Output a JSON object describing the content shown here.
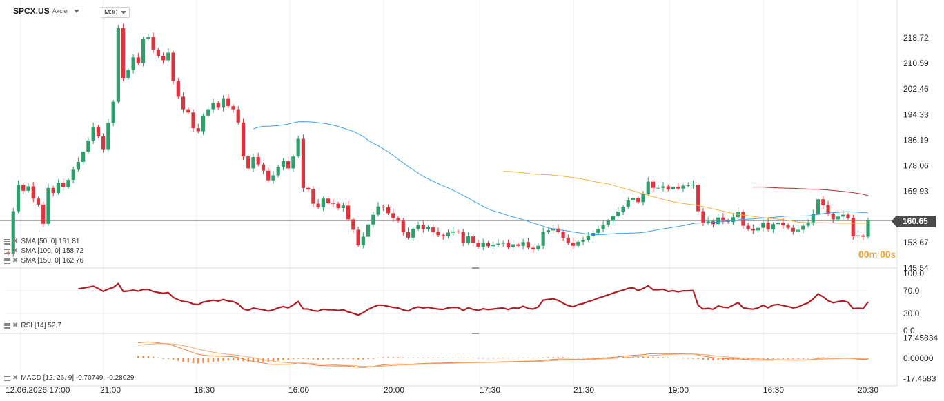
{
  "header": {
    "symbol": "SPCX.US",
    "symbol_type": "Akcje",
    "timeframe": "M30"
  },
  "countdown": {
    "minutes": "00",
    "minutes_unit": "m",
    "seconds": "00",
    "seconds_unit": "s"
  },
  "last_price": "160.65",
  "legend": {
    "sma50": "SMA [50, 0] 161.81",
    "sma100": "SMA [100, 0] 158.72",
    "sma150": "SMA [150, 0] 162.76",
    "rsi": "RSI [14] 52.7",
    "macd": "MACD [12, 26, 9] -0.70749, -0.28029"
  },
  "colors": {
    "up": "#2e9e6a",
    "down": "#e0323c",
    "sma50": "#3aa0f0",
    "sma100": "#f5b23a",
    "sma150": "#b8282e",
    "rsi": "#b01c22",
    "macd": "#f07f3a",
    "signal": "#f3a86a",
    "hist": "#f07f3a",
    "price_line": "#555555"
  },
  "chart_data": [
    {
      "type": "candlestick",
      "ylim": [
        145.54,
        224.5
      ],
      "y_ticks": [
        "218.72",
        "210.59",
        "202.46",
        "194.33",
        "186.19",
        "178.06",
        "169.93",
        "153.67",
        "145.54"
      ],
      "x_ticks": [
        "12.06.2026 17:00",
        "21:00",
        "18:30",
        "16:00",
        "20:00",
        "17:30",
        "21:30",
        "19:00",
        "16:30",
        "20:30"
      ],
      "last": 160.65,
      "closes": [
        150.2,
        163.6,
        172.0,
        170.1,
        171.5,
        167.6,
        165.7,
        159.6,
        171.0,
        169.4,
        172.7,
        171.3,
        173.6,
        176.8,
        179.3,
        182.5,
        186.1,
        190.4,
        187.4,
        183.3,
        191.7,
        198.4,
        221.8,
        206.0,
        208.5,
        212.5,
        210.7,
        218.5,
        219.0,
        215.0,
        213.0,
        211.6,
        214.0,
        205.0,
        200.0,
        196.0,
        195.0,
        190.0,
        189.0,
        194.0,
        196.0,
        198.0,
        196.5,
        199.5,
        197.0,
        196.0,
        191.8,
        181.0,
        177.2,
        180.8,
        178.5,
        176.5,
        173.4,
        175.0,
        177.7,
        179.5,
        177.2,
        181.0,
        186.6,
        171.0,
        170.5,
        166.0,
        164.8,
        167.6,
        166.1,
        166.0,
        164.6,
        165.4,
        161.0,
        157.7,
        152.8,
        155.5,
        159.4,
        162.5,
        165.1,
        164.8,
        163.0,
        161.4,
        160.5,
        157.0,
        155.2,
        158.0,
        159.3,
        157.9,
        158.5,
        157.0,
        156.0,
        155.6,
        156.8,
        157.2,
        157.0,
        153.6,
        155.6,
        153.6,
        152.3,
        153.5,
        152.5,
        152.9,
        153.3,
        153.6,
        152.1,
        153.1,
        152.6,
        153.8,
        152.0,
        151.5,
        152.6,
        157.0,
        157.5,
        158.1,
        157.1,
        155.2,
        153.5,
        152.6,
        153.9,
        154.5,
        155.7,
        156.7,
        158.0,
        159.2,
        160.5,
        162.0,
        163.5,
        165.0,
        167.0,
        167.7,
        166.5,
        169.0,
        173.0,
        171.0,
        171.0,
        171.5,
        170.5,
        171.3,
        170.8,
        171.7,
        171.8,
        172.0,
        163.6,
        160.0,
        160.4,
        159.5,
        161.6,
        160.6,
        160.2,
        161.7,
        163.4,
        159.0,
        158.0,
        157.5,
        158.3,
        160.0,
        157.8,
        159.5,
        160.0,
        159.1,
        158.3,
        157.2,
        157.7,
        159.0,
        160.1,
        162.7,
        167.4,
        165.5,
        162.7,
        161.0,
        161.9,
        162.5,
        161.5,
        155.6,
        155.9,
        155.5,
        160.6
      ]
    },
    {
      "type": "line",
      "name": "RSI [14]",
      "ylim": [
        0,
        100
      ],
      "y_ticks": [
        "100.0",
        "70.0",
        "30.0",
        "0.0"
      ]
    },
    {
      "type": "line",
      "name": "MACD [12, 26, 9]",
      "ylim": [
        -17.4583,
        17.45834
      ],
      "y_ticks": [
        "17.45834",
        "0.00000",
        "-17.4583"
      ]
    }
  ]
}
